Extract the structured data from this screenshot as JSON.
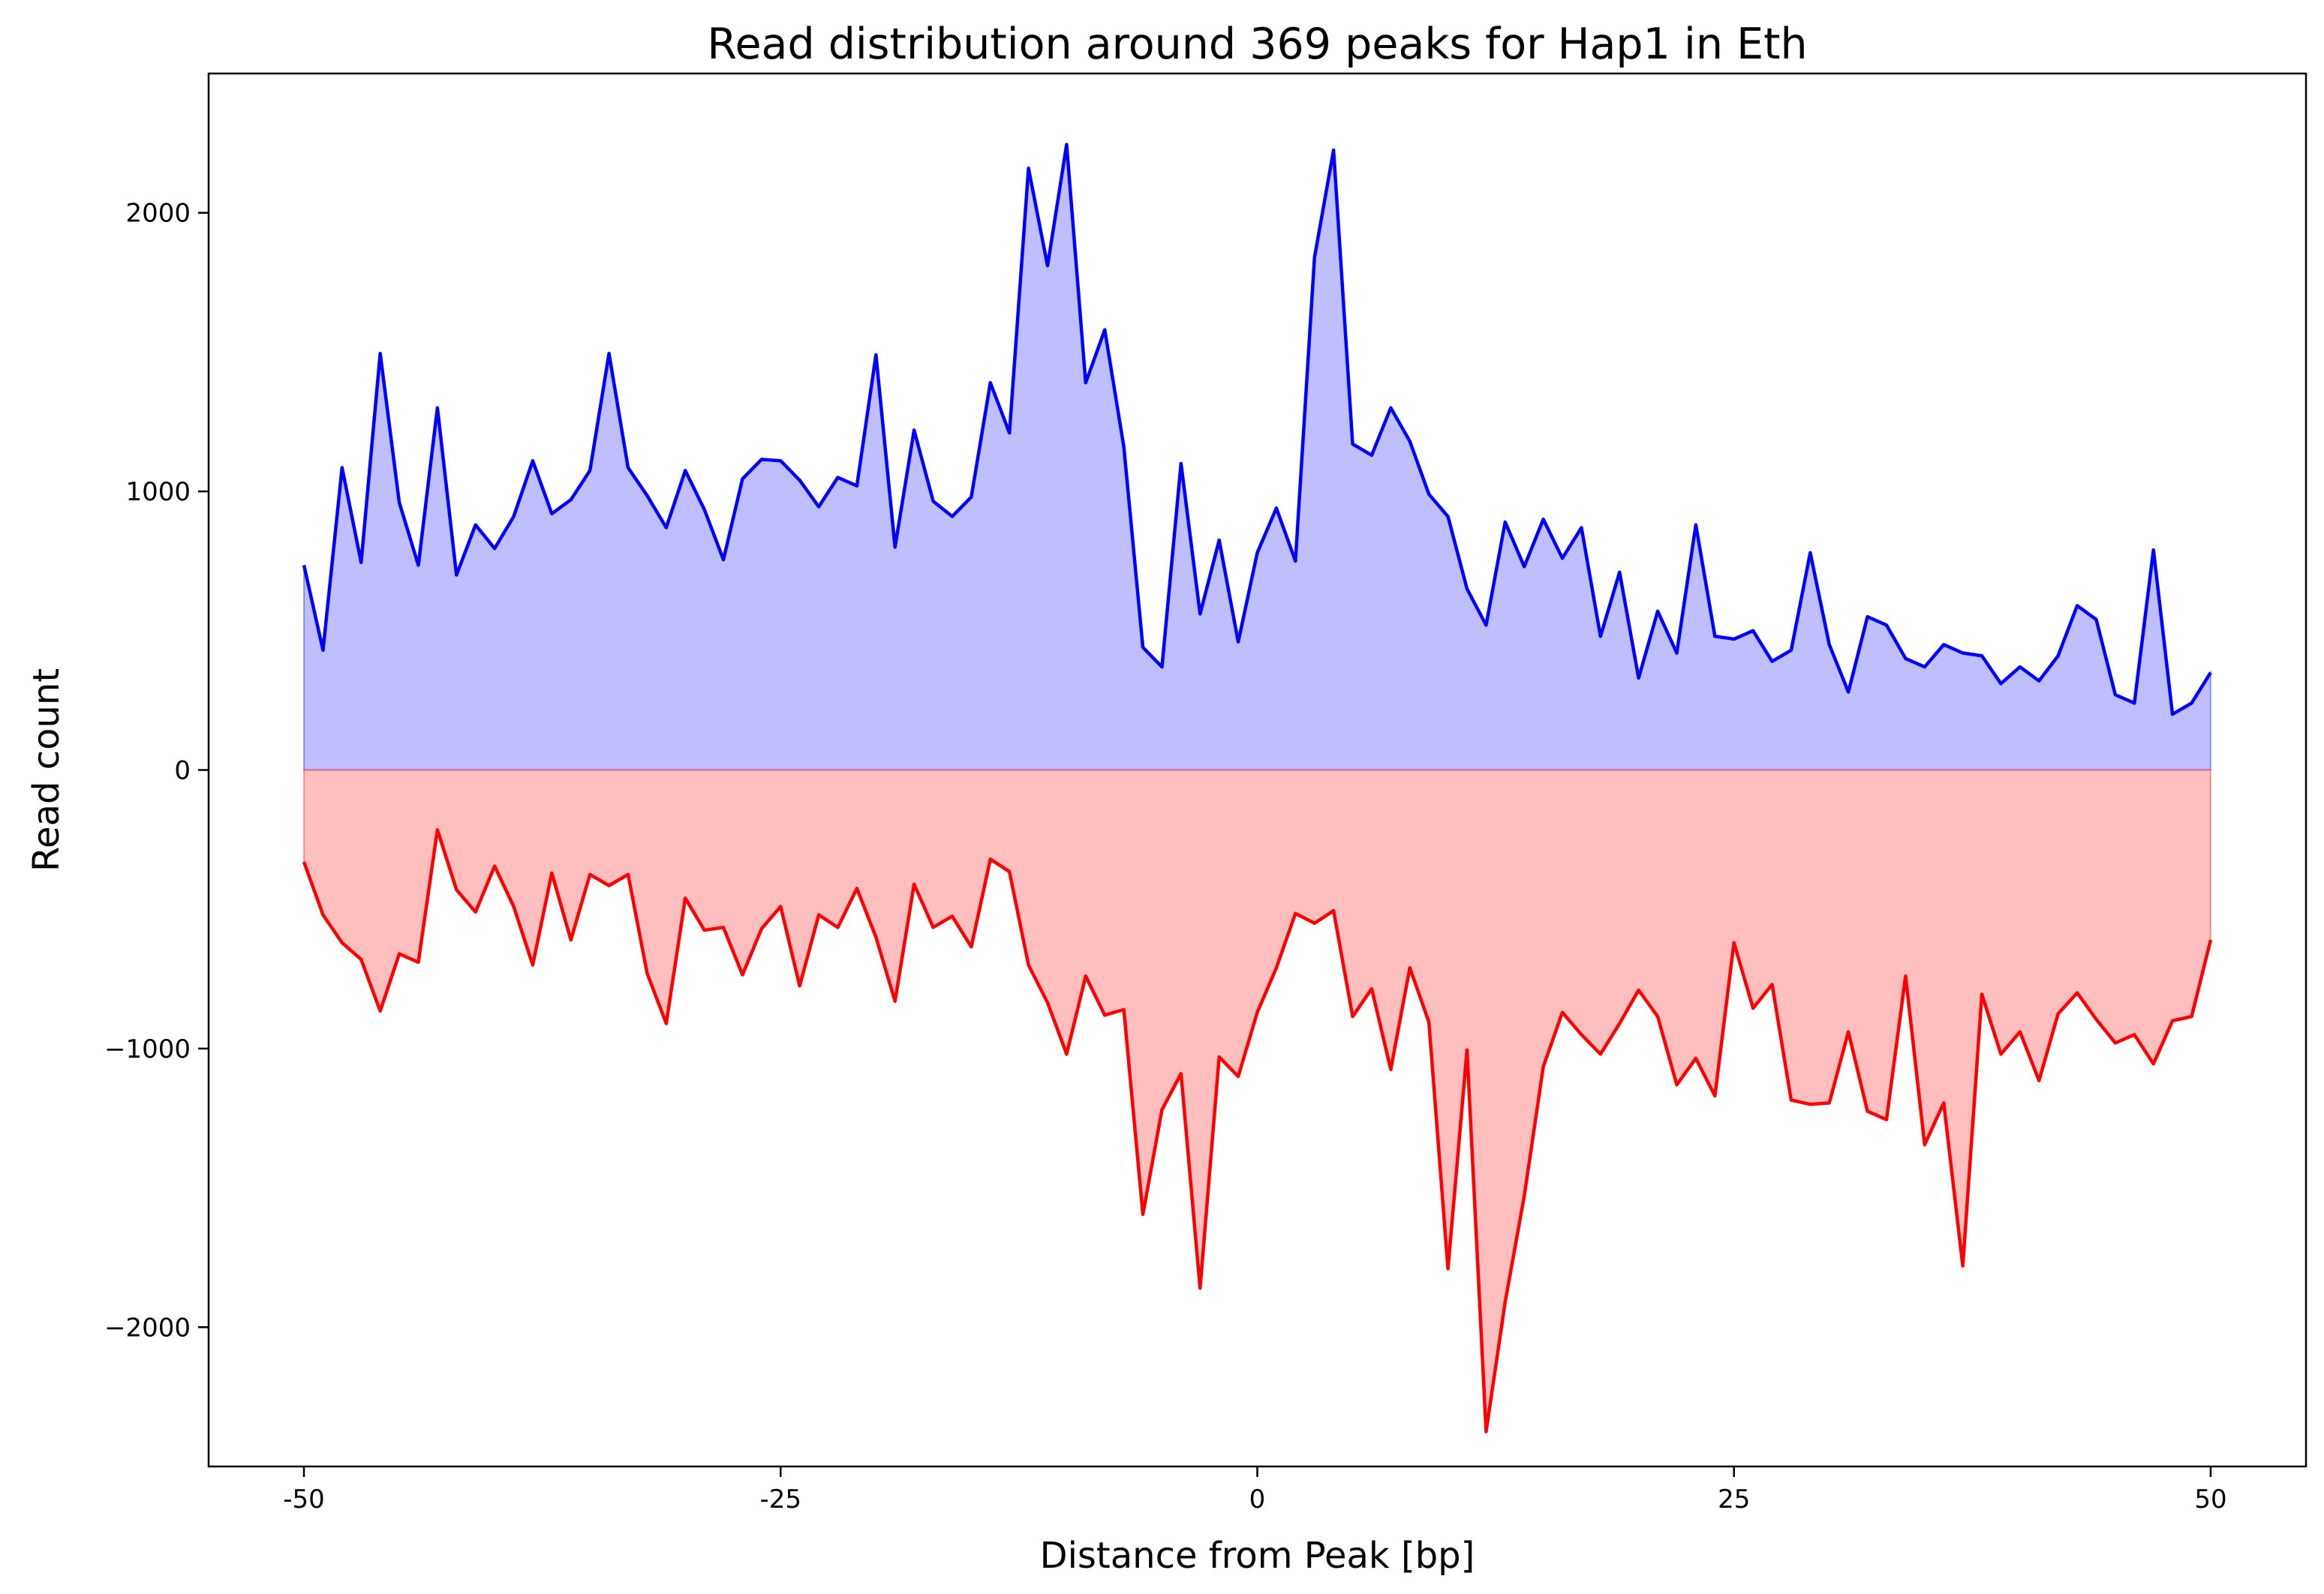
{
  "chart_data": {
    "type": "area",
    "title": "Read distribution around 369 peaks for Hap1 in Eth",
    "xlabel": "Distance from Peak [bp]",
    "ylabel": "Read count",
    "xlim": [
      -55,
      55
    ],
    "ylim": [
      -2500,
      2500
    ],
    "x_ticks": [
      -50,
      -25,
      0,
      25,
      50
    ],
    "x_tick_labels": [
      "-50",
      "-25",
      "0",
      "25",
      "50"
    ],
    "y_ticks": [
      -2000,
      -1000,
      0,
      1000,
      2000
    ],
    "y_tick_labels": [
      "−2000",
      "−1000",
      "0",
      "1000",
      "2000"
    ],
    "grid": false,
    "legend": "none",
    "x": [
      -50,
      -49,
      -48,
      -47,
      -46,
      -45,
      -44,
      -43,
      -42,
      -41,
      -40,
      -39,
      -38,
      -37,
      -36,
      -35,
      -34,
      -33,
      -32,
      -31,
      -30,
      -29,
      -28,
      -27,
      -26,
      -25,
      -24,
      -23,
      -22,
      -21,
      -20,
      -19,
      -18,
      -17,
      -16,
      -15,
      -14,
      -13,
      -12,
      -11,
      -10,
      -9,
      -8,
      -7,
      -6,
      -5,
      -4,
      -3,
      -2,
      -1,
      0,
      1,
      2,
      3,
      4,
      5,
      6,
      7,
      8,
      9,
      10,
      11,
      12,
      13,
      14,
      15,
      16,
      17,
      18,
      19,
      20,
      21,
      22,
      23,
      24,
      25,
      26,
      27,
      28,
      29,
      30,
      31,
      32,
      33,
      34,
      35,
      36,
      37,
      38,
      39,
      40,
      41,
      42,
      43,
      44,
      45,
      46,
      47,
      48,
      49,
      50
    ],
    "series": [
      {
        "color": "#0000ff",
        "fill": "#bfbfff",
        "values": [
          735,
          430,
          1085,
          745,
          1495,
          960,
          735,
          1300,
          700,
          880,
          795,
          910,
          1110,
          920,
          970,
          1075,
          1495,
          1085,
          985,
          870,
          1075,
          935,
          755,
          1045,
          1115,
          1110,
          1040,
          945,
          1050,
          1020,
          1490,
          800,
          1220,
          965,
          910,
          980,
          1390,
          1210,
          2160,
          1810,
          2245,
          1390,
          1580,
          1160,
          440,
          370,
          1100,
          560,
          825,
          460,
          780,
          940,
          750,
          1840,
          2225,
          1170,
          1130,
          1300,
          1180,
          990,
          910,
          650,
          520,
          890,
          730,
          900,
          760,
          870,
          480,
          710,
          330,
          570,
          420,
          880,
          480,
          470,
          500,
          390,
          430,
          780,
          450,
          280,
          550,
          520,
          400,
          370,
          450,
          420,
          410,
          310,
          370,
          320,
          410,
          590,
          540,
          270,
          240,
          790,
          200,
          240,
          350
        ]
      },
      {
        "color": "#ff0000",
        "fill": "#ffbfbf",
        "values": [
          -330,
          -520,
          -620,
          -680,
          -865,
          -660,
          -690,
          -215,
          -430,
          -510,
          -345,
          -490,
          -700,
          -370,
          -610,
          -375,
          -415,
          -375,
          -730,
          -910,
          -460,
          -575,
          -565,
          -735,
          -570,
          -490,
          -775,
          -520,
          -565,
          -425,
          -600,
          -830,
          -410,
          -565,
          -525,
          -635,
          -320,
          -365,
          -700,
          -835,
          -1020,
          -740,
          -880,
          -860,
          -1595,
          -1220,
          -1090,
          -1860,
          -1030,
          -1100,
          -870,
          -710,
          -515,
          -550,
          -505,
          -885,
          -785,
          -1075,
          -710,
          -905,
          -1790,
          -1005,
          -2375,
          -1910,
          -1530,
          -1065,
          -870,
          -950,
          -1020,
          -910,
          -790,
          -885,
          -1130,
          -1035,
          -1170,
          -620,
          -855,
          -770,
          -1185,
          -1200,
          -1195,
          -940,
          -1225,
          -1255,
          -740,
          -1345,
          -1195,
          -1780,
          -805,
          -1020,
          -940,
          -1115,
          -875,
          -800,
          -895,
          -980,
          -950,
          -1055,
          -900,
          -885,
          -610
        ]
      }
    ]
  }
}
